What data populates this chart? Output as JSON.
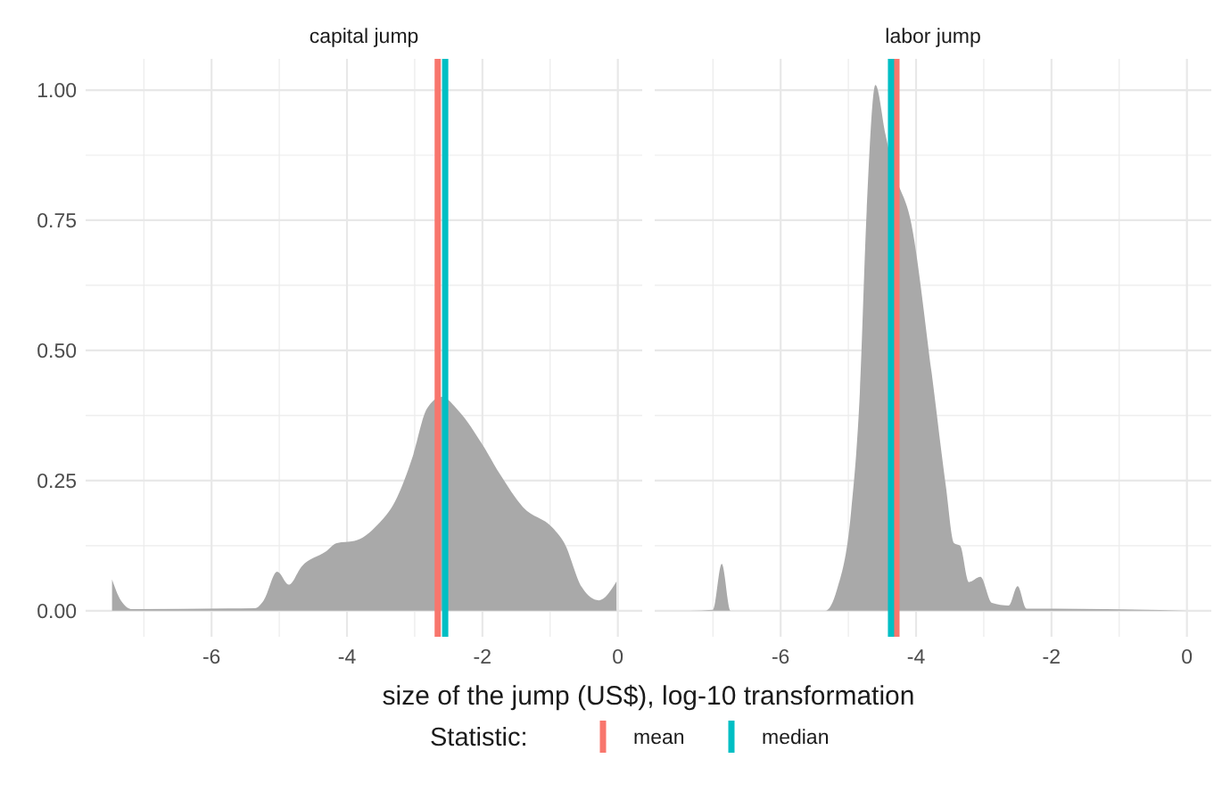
{
  "chart_data": [
    {
      "type": "area",
      "title": "capital jump",
      "xlabel": "size of the jump (US$), log-10 transformation",
      "legend_title": "Statistic:",
      "legend": "bottom",
      "grid": true,
      "xlim": [
        -7.86,
        0.36
      ],
      "xticks": [
        -6,
        -4,
        -2,
        0
      ],
      "ylim": [
        -0.05,
        1.06
      ],
      "yticks": [
        {
          "value": 0,
          "label": "0.00"
        },
        0.25,
        {
          "value": 0.5,
          "label": "0.50"
        },
        0.75,
        {
          "value": 1,
          "label": "1.00"
        }
      ],
      "tick_labels": true,
      "series": [
        {
          "color": "#a9a9a9",
          "x": [
            -7.47,
            -7.34,
            -7.17,
            -5.36,
            -5.23,
            -5.03,
            -4.86,
            -4.67,
            -4.32,
            -4.15,
            -3.89,
            -3.55,
            -3.29,
            -3.03,
            -2.82,
            -2.6,
            -2.34,
            -2.0,
            -1.74,
            -1.4,
            -0.96,
            -0.79,
            -0.53,
            -0.28,
            -0.02
          ],
          "values": [
            0.06,
            0.02,
            0.003,
            0.005,
            0.02,
            0.075,
            0.05,
            0.085,
            0.113,
            0.13,
            0.134,
            0.165,
            0.21,
            0.296,
            0.388,
            0.411,
            0.382,
            0.319,
            0.262,
            0.199,
            0.159,
            0.13,
            0.045,
            0.02,
            0.056
          ]
        }
      ],
      "ref_lines": [
        {
          "axis": "x",
          "value": -2.66,
          "label": "mean",
          "color": "#f8766d"
        },
        {
          "axis": "x",
          "value": -2.55,
          "label": "median",
          "color": "#00bfc4"
        }
      ]
    },
    {
      "type": "area",
      "title": "labor jump",
      "grid": true,
      "xlim": [
        -7.86,
        0.36
      ],
      "xticks": [
        -6,
        -4,
        -2,
        0
      ],
      "ylim": [
        -0.05,
        1.06
      ],
      "yticks": [
        0,
        0.25,
        0.5,
        0.75,
        1
      ],
      "tick_labels": "x",
      "series": [
        {
          "color": "#a9a9a9",
          "x": [
            -7.34,
            -7.0,
            -6.87,
            -6.74,
            -5.34,
            -5.17,
            -4.96,
            -4.83,
            -4.73,
            -4.6,
            -4.45,
            -4.33,
            -4.07,
            -3.77,
            -3.56,
            -3.44,
            -3.35,
            -3.22,
            -3.05,
            -2.88,
            -2.63,
            -2.5,
            -2.37,
            -1.95,
            -1.19,
            0
          ],
          "values": [
            0,
            0.002,
            0.09,
            0,
            0,
            0.04,
            0.19,
            0.42,
            0.767,
            1.01,
            0.914,
            0.846,
            0.743,
            0.457,
            0.239,
            0.13,
            0.125,
            0.055,
            0.065,
            0.015,
            0.01,
            0.047,
            0.004,
            0.004,
            0.003,
            0
          ]
        }
      ],
      "ref_lines": [
        {
          "axis": "x",
          "value": -4.29,
          "color": "#f8766d"
        },
        {
          "axis": "x",
          "value": -4.37,
          "color": "#00bfc4"
        }
      ]
    }
  ]
}
